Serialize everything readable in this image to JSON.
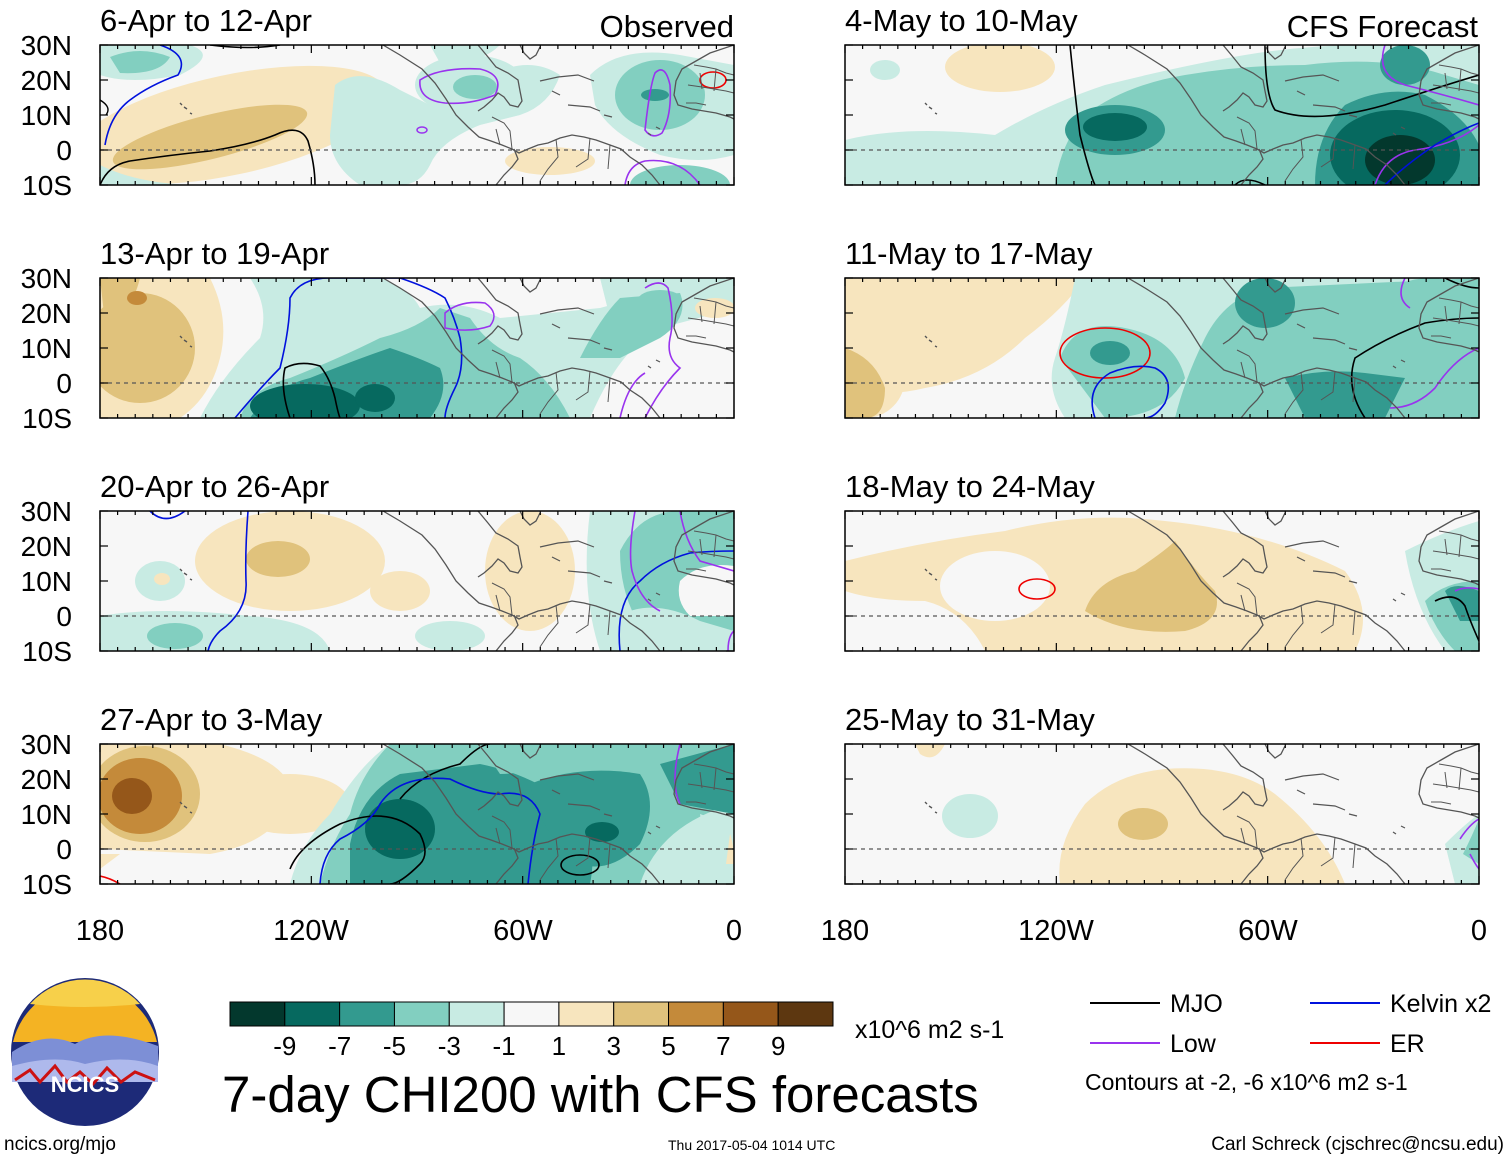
{
  "header": {
    "observed_label": "Observed",
    "forecast_label": "CFS Forecast"
  },
  "left_panels": [
    {
      "period": "6-Apr to 12-Apr"
    },
    {
      "period": "13-Apr to 19-Apr"
    },
    {
      "period": "20-Apr to 26-Apr"
    },
    {
      "period": "27-Apr to 3-May"
    }
  ],
  "right_panels": [
    {
      "period": "4-May to 10-May"
    },
    {
      "period": "11-May to 17-May"
    },
    {
      "period": "18-May to 24-May"
    },
    {
      "period": "25-May to 31-May"
    }
  ],
  "lat_labels": [
    "30N",
    "20N",
    "10N",
    "0",
    "10S"
  ],
  "lon_labels": [
    "180",
    "120W",
    "60W",
    "0"
  ],
  "colorbar": {
    "colors": [
      "#03382d",
      "#06695f",
      "#339a8f",
      "#82cfc0",
      "#c8ebe3",
      "#f7f7f7",
      "#f7e5be",
      "#e0c27c",
      "#c48a3a",
      "#95571a",
      "#5d3710"
    ],
    "labels": [
      "-9",
      "-7",
      "-5",
      "-3",
      "-1",
      "1",
      "3",
      "5",
      "7",
      "9"
    ],
    "units": "x10^6 m2 s-1"
  },
  "title": "7-day CHI200 with CFS forecasts",
  "legend": {
    "items": [
      {
        "label": "MJO",
        "color": "#000000"
      },
      {
        "label": "Kelvin x2",
        "color": "#0011dd"
      },
      {
        "label": "Low",
        "color": "#9933ee"
      },
      {
        "label": "ER",
        "color": "#ee0000"
      }
    ],
    "note": "Contours at -2, -6 x10^6 m2 s-1"
  },
  "logo": {
    "text": "NCICS"
  },
  "footer": {
    "url": "ncics.org/mjo",
    "timestamp": "Thu 2017-05-04 1014 UTC",
    "credit": "Carl Schreck (cjschrec@ncsu.edu)"
  },
  "palette": {
    "green_dark": "#06695f",
    "green_mid": "#339a8f",
    "green_light": "#82cfc0",
    "green_pale": "#c8ebe3",
    "tan_pale": "#f7e5be",
    "tan": "#e0c27c",
    "brown": "#c48a3a",
    "brown_dark": "#95571a"
  }
}
